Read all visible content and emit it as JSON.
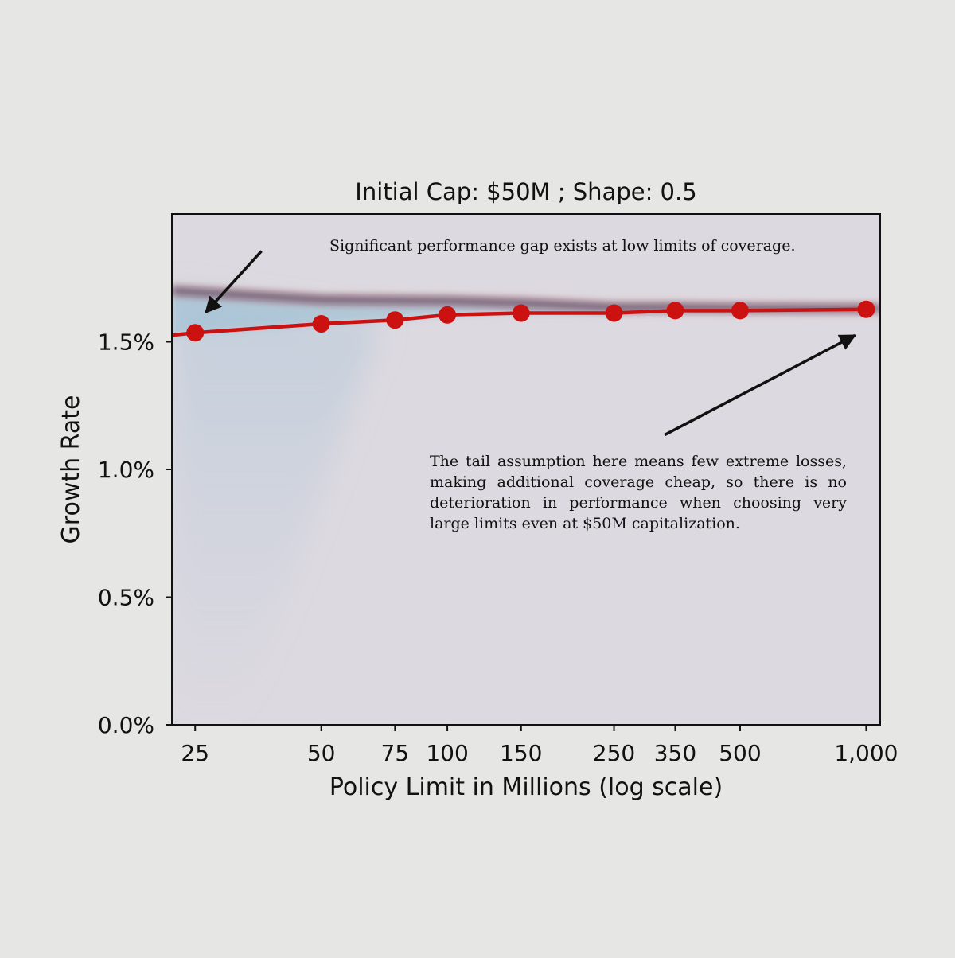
{
  "chart_data": {
    "type": "line",
    "title": "Initial Cap: $50M ; Shape: 0.5",
    "xlabel": "Policy Limit in Millions (log scale)",
    "ylabel": "Growth Rate",
    "x_scale": "log",
    "xlim": [
      22,
      1080
    ],
    "ylim": [
      0.0,
      0.02
    ],
    "x_ticks": [
      25,
      50,
      75,
      100,
      150,
      250,
      350,
      500,
      1000
    ],
    "x_tick_labels": [
      "25",
      "50",
      "75",
      "100",
      "150",
      "250",
      "350",
      "500",
      "1,000"
    ],
    "y_ticks": [
      0.0,
      0.005,
      0.01,
      0.015
    ],
    "y_tick_labels": [
      "0.0%",
      "0.5%",
      "1.0%",
      "1.5%"
    ],
    "grid": false,
    "series": [
      {
        "kind": "markers-line",
        "color": "#cc1111",
        "x": [
          25,
          50,
          75,
          100,
          150,
          250,
          350,
          500,
          1000
        ],
        "y": [
          0.01535,
          0.0157,
          0.01585,
          0.01605,
          0.01612,
          0.01612,
          0.01622,
          0.01622,
          0.01627
        ]
      },
      {
        "kind": "reference-band",
        "color": "#2a1a4a",
        "x": [
          22,
          50,
          100,
          150,
          250,
          350,
          500,
          1000,
          1080
        ],
        "y": [
          0.017,
          0.01665,
          0.0166,
          0.01652,
          0.01635,
          0.01635,
          0.01632,
          0.0163,
          0.0163
        ]
      }
    ],
    "annotations": [
      {
        "id": "top",
        "text": "Significant performance gap exists at low limits of coverage.",
        "arrow_tail": [
          36,
          0.01855
        ],
        "arrow_head": [
          26.5,
          0.01615
        ]
      },
      {
        "id": "bottom",
        "text": "The tail assumption here means few extreme losses, making additional coverage cheap, so there is no deterioration in performance when choosing very large limits even at $50M capitalization.",
        "arrow_tail": [
          330,
          0.01135
        ],
        "arrow_head": [
          940,
          0.01525
        ]
      }
    ]
  },
  "colors": {
    "page_background": "#e6e7e4",
    "plot_background": "#ddd9e0",
    "gap_shading": "#9ec0d4",
    "marker_line": "#cc1111"
  }
}
